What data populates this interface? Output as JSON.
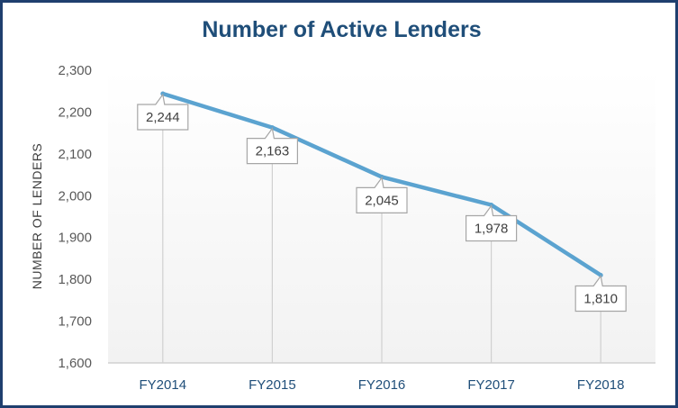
{
  "chart_data": {
    "type": "line",
    "title": "Number of Active Lenders",
    "xlabel": "",
    "ylabel": "NUMBER OF LENDERS",
    "categories": [
      "FY2014",
      "FY2015",
      "FY2016",
      "FY2017",
      "FY2018"
    ],
    "series": [
      {
        "values": [
          2244,
          2163,
          2045,
          1978,
          1810
        ],
        "color": "#5ba3d0"
      }
    ],
    "data_labels": [
      "2,244",
      "2,163",
      "2,045",
      "1,978",
      "1,810"
    ],
    "y_ticks": [
      "1,600",
      "1,700",
      "1,800",
      "1,900",
      "2,000",
      "2,100",
      "2,200",
      "2,300"
    ],
    "ylim": [
      1600,
      2300
    ],
    "grid": false,
    "legend": "none",
    "plot_background": "#f7f7f7"
  }
}
